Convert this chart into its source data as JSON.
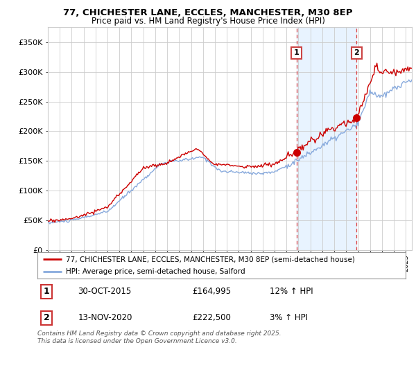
{
  "title1": "77, CHICHESTER LANE, ECCLES, MANCHESTER, M30 8EP",
  "title2": "Price paid vs. HM Land Registry's House Price Index (HPI)",
  "legend_line1": "77, CHICHESTER LANE, ECCLES, MANCHESTER, M30 8EP (semi-detached house)",
  "legend_line2": "HPI: Average price, semi-detached house, Salford",
  "footnote": "Contains HM Land Registry data © Crown copyright and database right 2025.\nThis data is licensed under the Open Government Licence v3.0.",
  "sale1_label": "1",
  "sale1_date": "30-OCT-2015",
  "sale1_price": "£164,995",
  "sale1_hpi": "12% ↑ HPI",
  "sale2_label": "2",
  "sale2_date": "13-NOV-2020",
  "sale2_price": "£222,500",
  "sale2_hpi": "3% ↑ HPI",
  "sale1_x": 2015.83,
  "sale1_y": 164995,
  "sale2_x": 2020.87,
  "sale2_y": 222500,
  "red_color": "#cc0000",
  "blue_color": "#88aadd",
  "shade_color": "#ddeeff",
  "vline_color": "#dd4444",
  "grid_color": "#cccccc",
  "bg_color": "#ffffff",
  "plot_bg": "#ffffff",
  "ylim": [
    0,
    375000
  ],
  "xlim_start": 1995,
  "xlim_end": 2025.5
}
